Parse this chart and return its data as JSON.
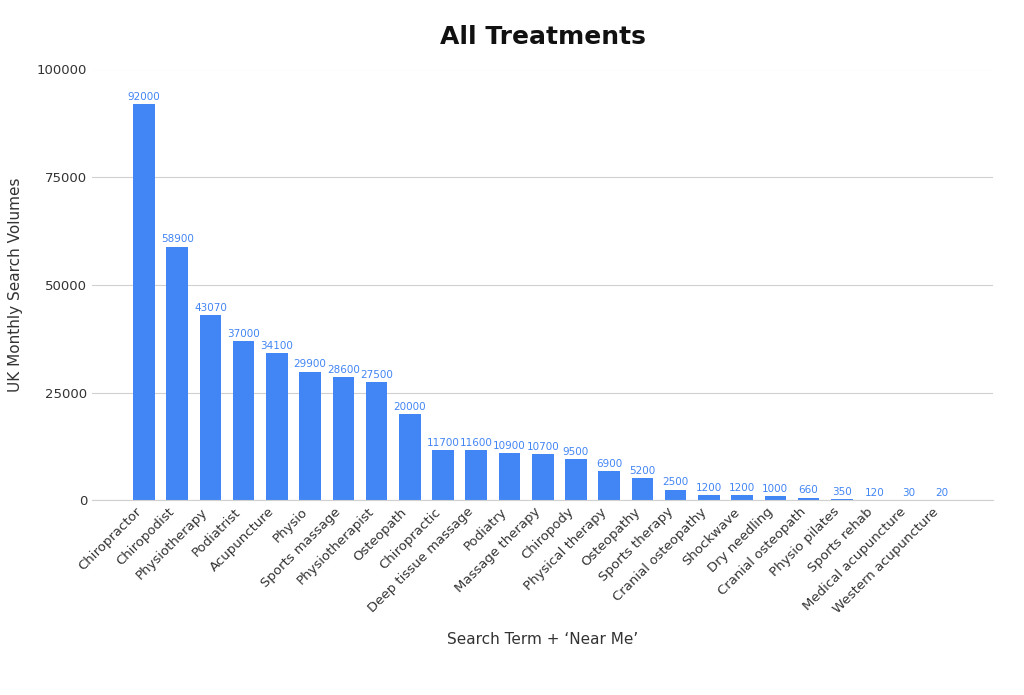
{
  "title": "All Treatments",
  "xlabel": "Search Term + ‘Near Me’",
  "ylabel": "UK Monthly Search Volumes",
  "categories": [
    "Chiropractor",
    "Chiropodist",
    "Physiotherapy",
    "Podiatrist",
    "Acupuncture",
    "Physio",
    "Sports massage",
    "Physiotherapist",
    "Osteopath",
    "Chiropractic",
    "Deep tissue massage",
    "Podiatry",
    "Massage therapy",
    "Chiropody",
    "Physical therapy",
    "Osteopathy",
    "Sports therapy",
    "Cranial osteopathy",
    "Shockwave",
    "Dry needling",
    "Cranial osteopath",
    "Physio pilates",
    "Sports rehab",
    "Medical acupuncture",
    "Western acupuncture"
  ],
  "values": [
    92000,
    58900,
    43070,
    37000,
    34100,
    29900,
    28600,
    27500,
    20000,
    11700,
    11600,
    10900,
    10700,
    9500,
    6900,
    5200,
    2500,
    1200,
    1200,
    1000,
    660,
    350,
    120,
    30,
    20
  ],
  "bar_color": "#4285f4",
  "label_color": "#4285f4",
  "background_color": "#ffffff",
  "grid_color": "#d0d0d0",
  "ylim": [
    0,
    100000
  ],
  "yticks": [
    0,
    25000,
    50000,
    75000,
    100000
  ],
  "title_fontsize": 18,
  "label_fontsize": 11,
  "tick_fontsize": 9.5,
  "value_label_fontsize": 7.5
}
